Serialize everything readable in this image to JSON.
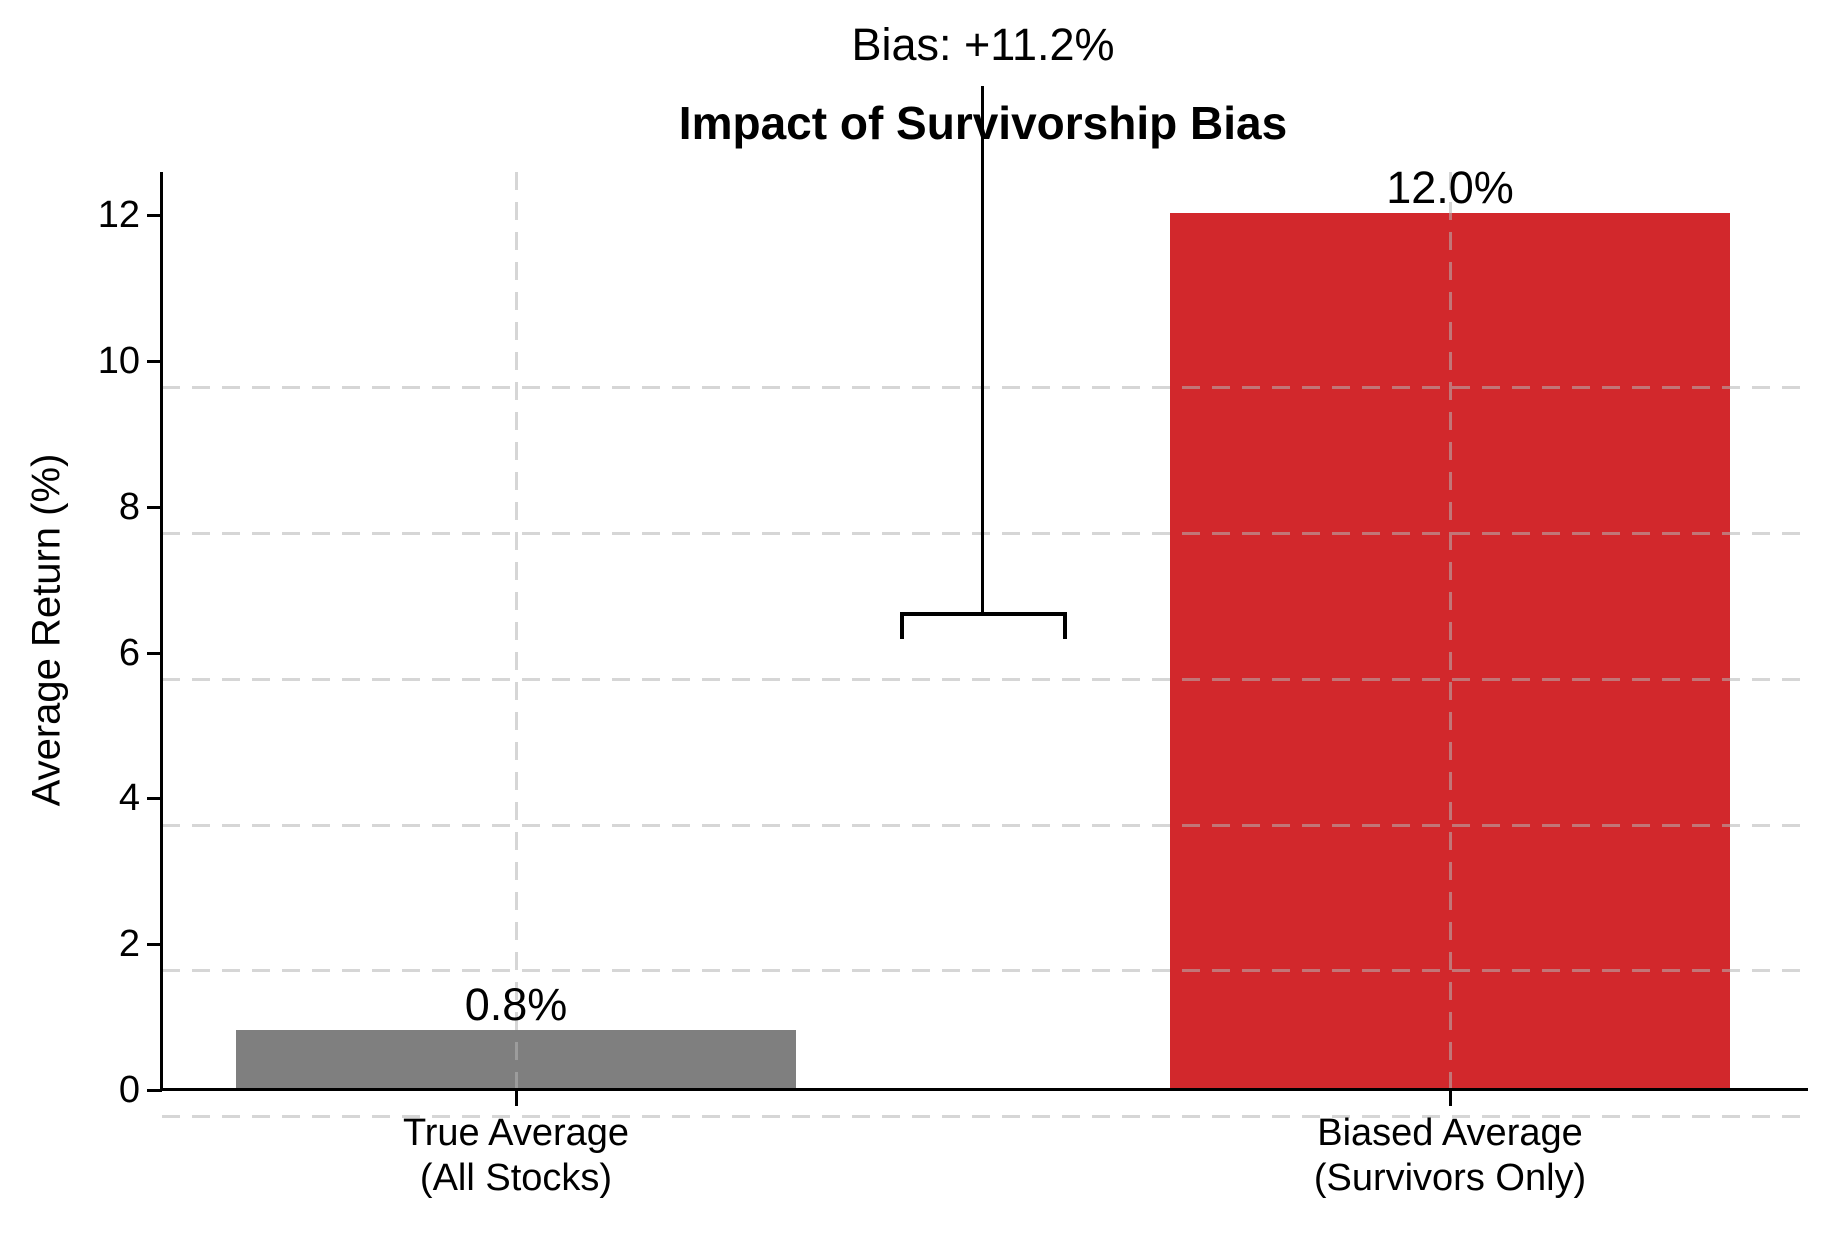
{
  "figure": {
    "background": "#ffffff"
  },
  "chart_data": {
    "type": "bar",
    "title": "Impact of Survivorship Bias",
    "xlabel": "",
    "ylabel": "Average Return (%)",
    "categories": [
      "True Average (All Stocks)",
      "Biased Average (Survivors Only)"
    ],
    "category_lines": [
      [
        "True Average",
        "(All Stocks)"
      ],
      [
        "Biased Average",
        "(Survivors Only)"
      ]
    ],
    "values": [
      0.8,
      12.0
    ],
    "bar_labels": [
      "0.8%",
      "12.0%"
    ],
    "bar_colors": [
      "#7f7f7f",
      "#d2282c"
    ],
    "ylim": [
      0,
      12.6
    ],
    "yticks": [
      0,
      2,
      4,
      6,
      8,
      10,
      12
    ],
    "grid": true,
    "grid_style": "dashed",
    "legend": "none",
    "annotation": {
      "text": "Bias: +11.2%",
      "bracket_value": 6.5
    },
    "colors": {
      "axis": "#000000",
      "text": "#000000",
      "gridline": "#b4b4b4"
    }
  }
}
